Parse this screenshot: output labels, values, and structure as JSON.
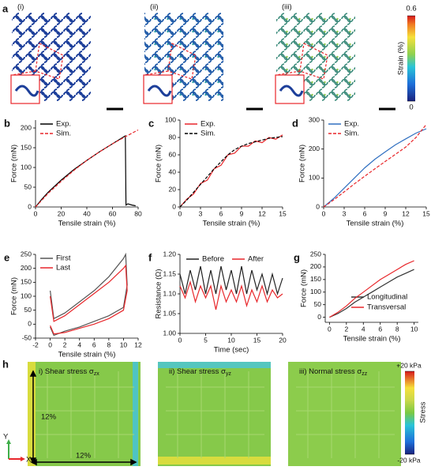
{
  "figure_a": {
    "panel": "a",
    "labels": [
      "(i)",
      "(ii)",
      "(iii)"
    ],
    "colorbar": {
      "title": "Strain (%)",
      "lim": [
        0,
        0.6
      ],
      "ticks": [
        0,
        0.6
      ]
    }
  },
  "chart_data": [
    {
      "type": "line",
      "panel": "b",
      "xlabel": "Tensile strain (%)",
      "ylabel": "Force (mN)",
      "xlim": [
        0,
        80
      ],
      "xticks": [
        0,
        20,
        40,
        60,
        80
      ],
      "ylim": [
        0,
        220
      ],
      "yticks": [
        0,
        50,
        100,
        150,
        200
      ],
      "legend": "upper left",
      "series": [
        {
          "name": "Exp.",
          "color": "#000000",
          "x": [
            0,
            5,
            10,
            20,
            30,
            40,
            50,
            60,
            65,
            70,
            70.5,
            72,
            75,
            78
          ],
          "values": [
            0,
            20,
            38,
            68,
            95,
            118,
            140,
            160,
            170,
            180,
            5,
            8,
            5,
            3
          ]
        },
        {
          "name": "Sim.",
          "color": "#e8262a",
          "dash": true,
          "x": [
            0,
            10,
            20,
            30,
            40,
            50,
            60,
            70,
            80
          ],
          "values": [
            0,
            35,
            65,
            93,
            118,
            140,
            160,
            178,
            195
          ]
        }
      ]
    },
    {
      "type": "line",
      "panel": "c",
      "xlabel": "Tensile strain (%)",
      "ylabel": "Force (mN)",
      "xlim": [
        0,
        15
      ],
      "xticks": [
        0,
        3,
        6,
        9,
        12,
        15
      ],
      "ylim": [
        0,
        100
      ],
      "yticks": [
        0,
        20,
        40,
        60,
        80,
        100
      ],
      "legend": "upper left",
      "series": [
        {
          "name": "Exp.",
          "color": "#e8262a",
          "x": [
            0,
            1,
            2,
            3,
            4,
            5,
            6,
            7,
            8,
            9,
            10,
            11,
            12,
            13,
            14,
            15
          ],
          "values": [
            0,
            9,
            15,
            27,
            31,
            44,
            48,
            60,
            62,
            70,
            70,
            76,
            74,
            80,
            78,
            83
          ]
        },
        {
          "name": "Sim.",
          "color": "#000000",
          "dash": true,
          "x": [
            0,
            1,
            2,
            3,
            4,
            5,
            6,
            7,
            8,
            9,
            10,
            11,
            12,
            13,
            14,
            15
          ],
          "values": [
            0,
            8,
            17,
            26,
            35,
            44,
            52,
            60,
            66,
            70,
            73,
            75,
            77,
            79,
            80,
            81
          ]
        }
      ]
    },
    {
      "type": "line",
      "panel": "d",
      "xlabel": "Tensile strain (%)",
      "ylabel": "Force (mN)",
      "xlim": [
        0,
        15
      ],
      "xticks": [
        0,
        3,
        6,
        9,
        12,
        15
      ],
      "ylim": [
        0,
        300
      ],
      "yticks": [
        0,
        100,
        200,
        300
      ],
      "legend": "upper left",
      "series": [
        {
          "name": "Exp.",
          "color": "#2f6fc0",
          "x": [
            0,
            1.5,
            3,
            4.5,
            6,
            7.5,
            9,
            10.5,
            12,
            13.5,
            15
          ],
          "values": [
            0,
            30,
            65,
            100,
            135,
            165,
            190,
            215,
            235,
            255,
            270
          ]
        },
        {
          "name": "Sim.",
          "color": "#e8262a",
          "dash": true,
          "x": [
            0,
            1.5,
            3,
            4.5,
            6,
            7.5,
            9,
            10.5,
            12,
            13.5,
            15
          ],
          "values": [
            0,
            25,
            52,
            80,
            106,
            132,
            157,
            182,
            207,
            240,
            285
          ]
        }
      ]
    },
    {
      "type": "line",
      "panel": "e",
      "xlabel": "Tensile strain (%)",
      "ylabel": "Force (mN)",
      "xlim": [
        -2,
        12
      ],
      "xticks": [
        -2,
        0,
        2,
        4,
        6,
        8,
        10,
        12
      ],
      "ylim": [
        -50,
        250
      ],
      "yticks": [
        -50,
        0,
        50,
        100,
        150,
        200,
        250
      ],
      "legend": "upper left",
      "series": [
        {
          "name": "First",
          "color": "#555555",
          "x": [
            0,
            0.5,
            2,
            4,
            6,
            8,
            10,
            10.3,
            10.5,
            10,
            8,
            6,
            4,
            2,
            0.5,
            0
          ],
          "values": [
            120,
            20,
            40,
            80,
            120,
            170,
            235,
            250,
            140,
            60,
            30,
            10,
            -10,
            -25,
            -40,
            -10
          ]
        },
        {
          "name": "Last",
          "color": "#e8262a",
          "x": [
            0,
            0.5,
            2,
            4,
            6,
            8,
            10,
            10.3,
            10.5,
            10,
            8,
            6,
            4,
            2,
            0.5,
            0
          ],
          "values": [
            100,
            10,
            30,
            70,
            110,
            150,
            200,
            210,
            120,
            50,
            20,
            0,
            -15,
            -30,
            -35,
            -5
          ]
        }
      ]
    },
    {
      "type": "line",
      "panel": "f",
      "xlabel": "Time (sec)",
      "ylabel": "Resistance (Ω)",
      "xlim": [
        0,
        20
      ],
      "xticks": [
        0,
        5,
        10,
        15,
        20
      ],
      "ylim": [
        1.0,
        1.2
      ],
      "yticks": [
        {
          "value": 1.0,
          "label": "1.00"
        },
        1.05,
        {
          "value": 1.1,
          "label": "1.10"
        },
        1.15,
        {
          "value": 1.2,
          "label": "1.20"
        }
      ],
      "legend": "upper center",
      "series": [
        {
          "name": "Before",
          "color": "#222222",
          "x": [
            0,
            1,
            2,
            3,
            4,
            5,
            6,
            7,
            8,
            9,
            10,
            11,
            12,
            13,
            14,
            15,
            16,
            17,
            18,
            19,
            20
          ],
          "values": [
            1.15,
            1.1,
            1.16,
            1.11,
            1.17,
            1.1,
            1.16,
            1.1,
            1.17,
            1.11,
            1.16,
            1.1,
            1.17,
            1.1,
            1.16,
            1.11,
            1.15,
            1.1,
            1.15,
            1.1,
            1.14
          ]
        },
        {
          "name": "After",
          "color": "#e8262a",
          "x": [
            0,
            1,
            2,
            3,
            4,
            5,
            6,
            7,
            8,
            9,
            10,
            11,
            12,
            13,
            14,
            15,
            16,
            17,
            18,
            19,
            20
          ],
          "values": [
            1.12,
            1.09,
            1.13,
            1.08,
            1.12,
            1.09,
            1.12,
            1.06,
            1.12,
            1.08,
            1.11,
            1.08,
            1.12,
            1.07,
            1.11,
            1.08,
            1.12,
            1.08,
            1.11,
            1.09,
            1.1
          ]
        }
      ]
    },
    {
      "type": "line",
      "panel": "g",
      "xlabel": "Tensile strain (%)",
      "ylabel": "Force (mN)",
      "xlim": [
        -0.5,
        10.5
      ],
      "xticks": [
        0,
        2,
        4,
        6,
        8,
        10
      ],
      "ylim": [
        -20,
        250
      ],
      "yticks": [
        0,
        50,
        100,
        150,
        200,
        250
      ],
      "legend": "lower right",
      "series": [
        {
          "name": "Longitudinal",
          "color": "#333333",
          "x": [
            0,
            1,
            2,
            3,
            4,
            5,
            6,
            7,
            8,
            9,
            10
          ],
          "values": [
            0,
            15,
            35,
            60,
            80,
            100,
            120,
            140,
            160,
            175,
            190
          ]
        },
        {
          "name": "Transversal",
          "color": "#e8262a",
          "x": [
            0,
            1,
            2,
            3,
            4,
            5,
            6,
            7,
            8,
            9,
            10
          ],
          "values": [
            0,
            20,
            45,
            75,
            100,
            125,
            150,
            170,
            190,
            210,
            225
          ]
        }
      ]
    }
  ],
  "figure_h": {
    "panel": "h",
    "maps": [
      {
        "label": "i) Shear stress σ",
        "sub": "zx"
      },
      {
        "label": "ii) Shear stress σ",
        "sub": "yz"
      },
      {
        "label": "iii) Normal stress σ",
        "sub": "zz"
      }
    ],
    "colorbar": {
      "title": "Stress",
      "lim": [
        -20,
        20
      ],
      "ticks": [
        {
          "value": 20,
          "label": "+20 kPa"
        },
        {
          "value": -20,
          "label": "-20 kPa"
        }
      ]
    },
    "dimensions": [
      "12%",
      "12%"
    ],
    "axes": [
      "Y",
      "X"
    ]
  }
}
